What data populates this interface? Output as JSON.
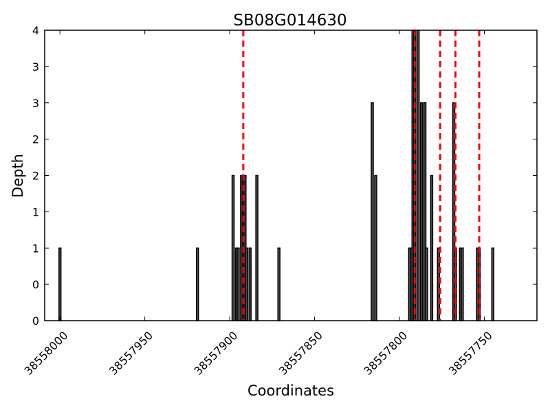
{
  "chart_data": {
    "type": "bar",
    "title": "SB08G014630",
    "xlabel": "Coordinates",
    "ylabel": "Depth",
    "x_reversed": true,
    "xlim": [
      38558009,
      38557719
    ],
    "ylim": [
      0,
      4
    ],
    "y_tick_values": [
      0,
      0.5,
      1,
      1.5,
      2,
      2.5,
      3,
      3.5,
      4
    ],
    "y_tick_labels": [
      "0",
      "0",
      "1",
      "1",
      "2",
      "2",
      "3",
      "3",
      "4"
    ],
    "x_ticks": [
      {
        "value": 38558000,
        "label": "38558000"
      },
      {
        "value": 38557950,
        "label": "38557950"
      },
      {
        "value": 38557900,
        "label": "38557900"
      },
      {
        "value": 38557850,
        "label": "38557850"
      },
      {
        "value": 38557800,
        "label": "38557800"
      },
      {
        "value": 38557750,
        "label": "38557750"
      }
    ],
    "bar_width": 1,
    "bars": [
      {
        "x": 38558000,
        "y": 1
      },
      {
        "x": 38557919,
        "y": 1
      },
      {
        "x": 38557898,
        "y": 2
      },
      {
        "x": 38557896,
        "y": 1
      },
      {
        "x": 38557895,
        "y": 1
      },
      {
        "x": 38557893,
        "y": 2
      },
      {
        "x": 38557892,
        "y": 2
      },
      {
        "x": 38557891,
        "y": 2
      },
      {
        "x": 38557890,
        "y": 1
      },
      {
        "x": 38557888,
        "y": 1
      },
      {
        "x": 38557884,
        "y": 2
      },
      {
        "x": 38557871,
        "y": 1
      },
      {
        "x": 38557816,
        "y": 3
      },
      {
        "x": 38557814,
        "y": 2
      },
      {
        "x": 38557794,
        "y": 1
      },
      {
        "x": 38557793,
        "y": 1
      },
      {
        "x": 38557792,
        "y": 4
      },
      {
        "x": 38557791,
        "y": 4
      },
      {
        "x": 38557789,
        "y": 4
      },
      {
        "x": 38557787,
        "y": 3
      },
      {
        "x": 38557785,
        "y": 3
      },
      {
        "x": 38557784,
        "y": 1
      },
      {
        "x": 38557781,
        "y": 2
      },
      {
        "x": 38557777,
        "y": 1
      },
      {
        "x": 38557768,
        "y": 3
      },
      {
        "x": 38557767,
        "y": 1
      },
      {
        "x": 38557764,
        "y": 1
      },
      {
        "x": 38557763,
        "y": 1
      },
      {
        "x": 38557754,
        "y": 1
      },
      {
        "x": 38557753,
        "y": 1
      },
      {
        "x": 38557745,
        "y": 1
      }
    ],
    "vlines": [
      38557892,
      38557791,
      38557776,
      38557767,
      38557753
    ],
    "vline_color": "#ff0000",
    "bar_fill": "#555555",
    "bar_edge": "#000000"
  }
}
